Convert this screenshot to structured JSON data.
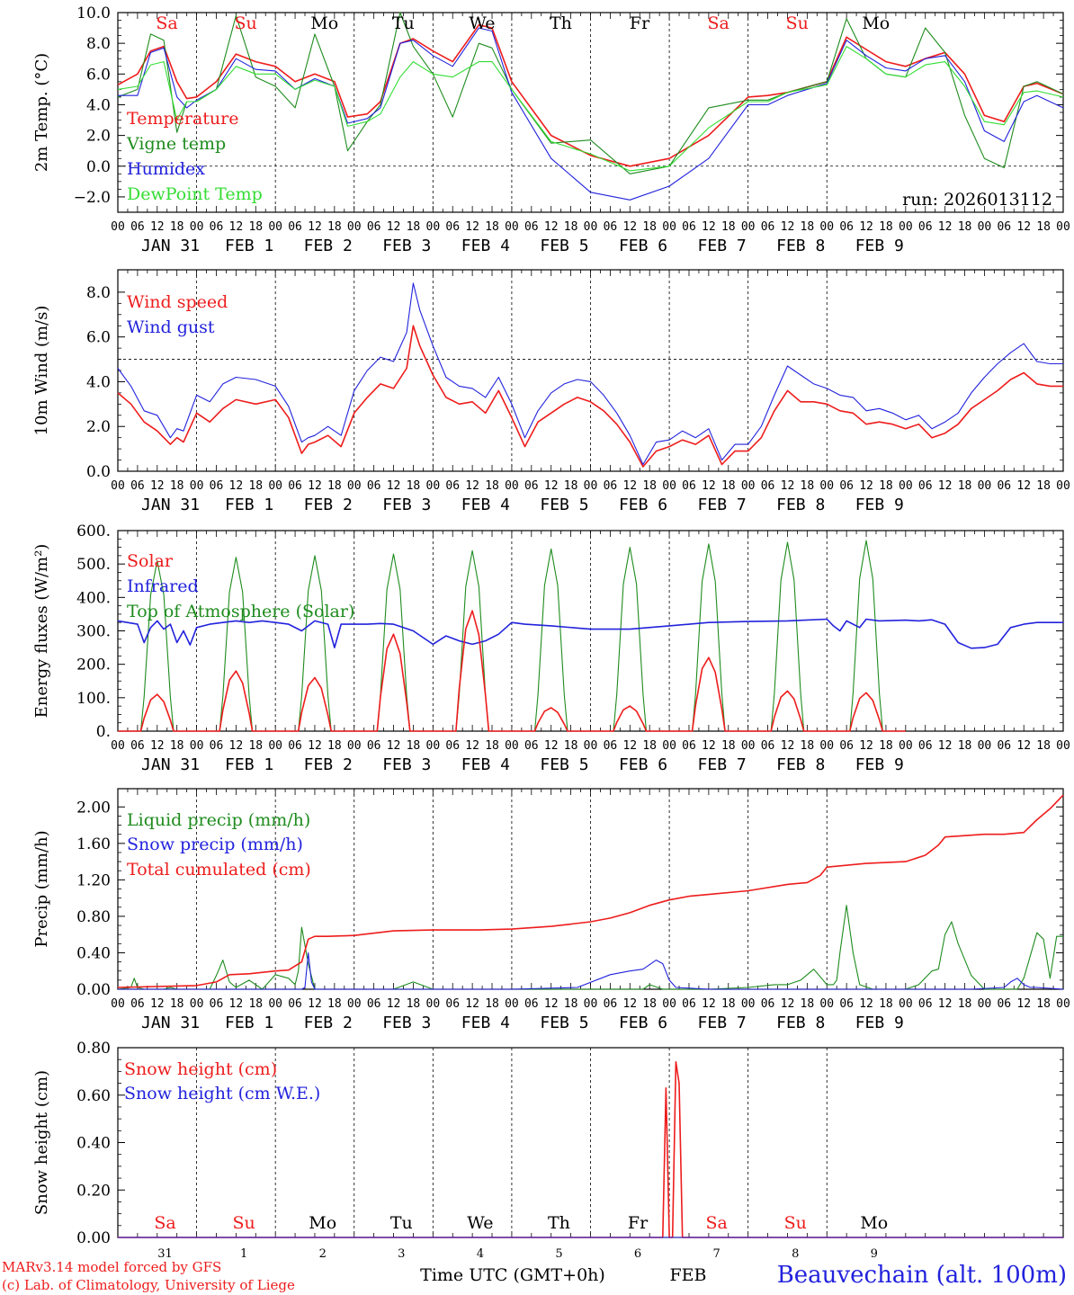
{
  "colors": {
    "red": "#ee1c1c",
    "green": "#1e8c1e",
    "blue": "#2222dd",
    "lightgreen": "#33dd33",
    "axis": "#000000"
  },
  "day_labels": [
    {
      "text": "Sa",
      "color": "red"
    },
    {
      "text": "Su",
      "color": "red"
    },
    {
      "text": "Mo",
      "color": "axis"
    },
    {
      "text": "Tu",
      "color": "axis"
    },
    {
      "text": "We",
      "color": "axis"
    },
    {
      "text": "Th",
      "color": "axis"
    },
    {
      "text": "Fr",
      "color": "axis"
    },
    {
      "text": "Sa",
      "color": "red"
    },
    {
      "text": "Su",
      "color": "red"
    },
    {
      "text": "Mo",
      "color": "axis"
    }
  ],
  "hour_ticks": [
    "00",
    "06",
    "12",
    "18"
  ],
  "date_labels": [
    "JAN 31",
    "FEB  1",
    "FEB  2",
    "FEB  3",
    "FEB  4",
    "FEB  5",
    "FEB  6",
    "FEB  7",
    "FEB  8",
    "FEB  9"
  ],
  "footer": {
    "day_numbers": [
      "31",
      "1",
      "2",
      "3",
      "4",
      "5",
      "6",
      "7",
      "8",
      "9"
    ],
    "time_label": "Time UTC (GMT+0h)",
    "month_label": "FEB",
    "station": "Beauvechain (alt. 100m)",
    "credit_1": "MARv3.14 model forced by GFS",
    "credit_2": "(c) Lab. of Climatology, University of Liege"
  },
  "chart_data": [
    {
      "id": "temperature",
      "type": "line",
      "ylabel": "2m Temp. (°C)",
      "ylim": [
        -3.0,
        10.0
      ],
      "yticks": [
        -2.0,
        0.0,
        2.0,
        4.0,
        6.0,
        8.0,
        10.0
      ],
      "ytick_labels": [
        "-2.0",
        "0.0",
        "2.0",
        "4.0",
        "6.0",
        "8.0",
        "10.0"
      ],
      "hline": 0.0,
      "run_label": "run: 2026013112",
      "x_hours": [
        0,
        6,
        10,
        14,
        18,
        21,
        24,
        30,
        36,
        42,
        48,
        54,
        60,
        66,
        70,
        76,
        80,
        86,
        90,
        96,
        102,
        110,
        114,
        120,
        132,
        144,
        156,
        168,
        180,
        192,
        198,
        204,
        216,
        222,
        228,
        234,
        240,
        246,
        252,
        258,
        264,
        270,
        276,
        280,
        288
      ],
      "series": [
        {
          "name": "Temperature",
          "color": "red",
          "values": [
            5.3,
            6.0,
            7.5,
            7.8,
            5.5,
            4.4,
            4.5,
            5.5,
            7.3,
            6.8,
            6.5,
            5.5,
            6.0,
            5.5,
            3.2,
            3.4,
            4.2,
            8.0,
            8.3,
            7.5,
            6.8,
            9.2,
            9.0,
            5.5,
            2.0,
            0.7,
            0.0,
            0.5,
            2.0,
            4.5,
            4.6,
            4.8,
            5.5,
            8.4,
            7.6,
            6.8,
            6.5,
            7.0,
            7.4,
            6.0,
            3.3,
            2.9,
            5.2,
            5.4,
            4.7
          ]
        },
        {
          "name": "Vigne temp",
          "color": "green",
          "values": [
            4.5,
            5.0,
            8.6,
            8.2,
            2.2,
            4.2,
            4.2,
            5.0,
            9.8,
            5.8,
            5.2,
            3.8,
            8.6,
            5.2,
            1.0,
            2.9,
            4.0,
            10.0,
            7.8,
            6.0,
            3.2,
            8.0,
            7.7,
            5.0,
            1.5,
            1.7,
            -0.5,
            0.0,
            3.8,
            4.3,
            4.3,
            4.8,
            5.5,
            9.6,
            7.0,
            6.0,
            5.8,
            9.0,
            7.4,
            3.3,
            0.5,
            -0.1,
            5.2,
            5.5,
            4.7
          ]
        },
        {
          "name": "Humidex",
          "color": "blue",
          "values": [
            4.6,
            4.6,
            7.4,
            7.7,
            4.5,
            3.8,
            4.3,
            5.0,
            7.0,
            6.3,
            6.2,
            5.0,
            5.7,
            5.2,
            2.8,
            3.1,
            3.8,
            8.0,
            8.2,
            7.2,
            6.5,
            9.0,
            8.8,
            4.8,
            0.5,
            -1.7,
            -2.2,
            -1.3,
            0.5,
            4.0,
            4.0,
            4.6,
            5.4,
            8.2,
            7.2,
            6.4,
            6.2,
            7.0,
            7.2,
            5.5,
            2.3,
            1.6,
            4.2,
            4.6,
            3.8
          ]
        },
        {
          "name": "DewPoint Temp",
          "color": "lightgreen",
          "values": [
            5.0,
            5.2,
            6.6,
            6.8,
            3.0,
            4.2,
            4.2,
            5.0,
            6.5,
            6.0,
            6.0,
            5.0,
            5.6,
            5.2,
            2.6,
            2.9,
            3.4,
            5.8,
            6.8,
            6.0,
            5.8,
            6.8,
            6.8,
            5.0,
            1.6,
            0.8,
            -0.3,
            0.0,
            2.5,
            4.2,
            4.2,
            4.8,
            5.3,
            7.8,
            7.0,
            6.0,
            5.8,
            6.6,
            6.8,
            5.2,
            2.9,
            2.7,
            4.8,
            4.9,
            4.5
          ]
        }
      ]
    },
    {
      "id": "wind",
      "type": "line",
      "ylabel": "10m Wind (m/s)",
      "ylim": [
        0.0,
        9.0
      ],
      "yticks": [
        0.0,
        2.0,
        4.0,
        6.0,
        8.0
      ],
      "ytick_labels": [
        "0.0",
        "2.0",
        "4.0",
        "6.0",
        "8.0"
      ],
      "hline": 5.0,
      "x_hours": [
        0,
        4,
        8,
        12,
        16,
        18,
        20,
        24,
        28,
        32,
        36,
        42,
        48,
        52,
        56,
        58,
        60,
        64,
        68,
        72,
        76,
        80,
        84,
        88,
        90,
        92,
        96,
        100,
        104,
        108,
        112,
        116,
        120,
        124,
        128,
        132,
        136,
        140,
        144,
        148,
        152,
        156,
        160,
        164,
        168,
        172,
        176,
        180,
        184,
        188,
        192,
        196,
        200,
        204,
        208,
        212,
        216,
        220,
        224,
        228,
        232,
        236,
        240,
        244,
        248,
        252,
        256,
        260,
        264,
        268,
        272,
        276,
        280,
        284,
        288
      ],
      "series": [
        {
          "name": "Wind speed",
          "color": "red",
          "values": [
            3.5,
            3.0,
            2.2,
            1.8,
            1.2,
            1.5,
            1.3,
            2.6,
            2.2,
            2.8,
            3.2,
            3.0,
            3.2,
            2.4,
            0.8,
            1.2,
            1.3,
            1.6,
            1.1,
            2.6,
            3.3,
            3.9,
            3.7,
            4.6,
            6.5,
            5.6,
            4.3,
            3.3,
            3.0,
            3.1,
            2.6,
            3.6,
            2.4,
            1.1,
            2.2,
            2.6,
            3.0,
            3.3,
            3.1,
            2.7,
            2.1,
            1.3,
            0.2,
            0.9,
            1.1,
            1.4,
            1.2,
            1.6,
            0.3,
            0.9,
            0.9,
            1.5,
            2.7,
            3.6,
            3.1,
            3.1,
            3.0,
            2.7,
            2.6,
            2.1,
            2.2,
            2.1,
            1.9,
            2.1,
            1.5,
            1.7,
            2.1,
            2.8,
            3.2,
            3.6,
            4.1,
            4.4,
            3.9,
            3.8,
            3.8
          ]
        },
        {
          "name": "Wind gust",
          "color": "blue",
          "values": [
            4.6,
            3.8,
            2.7,
            2.5,
            1.5,
            1.9,
            1.8,
            3.4,
            3.1,
            3.9,
            4.2,
            4.1,
            3.8,
            2.9,
            1.3,
            1.5,
            1.6,
            2.0,
            1.6,
            3.6,
            4.5,
            5.1,
            4.9,
            6.2,
            8.4,
            7.2,
            5.6,
            4.2,
            3.8,
            3.7,
            3.3,
            4.2,
            3.0,
            1.5,
            2.7,
            3.5,
            3.9,
            4.1,
            4.0,
            3.4,
            2.6,
            1.6,
            0.3,
            1.3,
            1.4,
            1.8,
            1.5,
            1.9,
            0.5,
            1.2,
            1.2,
            2.0,
            3.4,
            4.7,
            4.3,
            3.9,
            3.7,
            3.4,
            3.3,
            2.7,
            2.8,
            2.6,
            2.3,
            2.5,
            1.9,
            2.2,
            2.6,
            3.5,
            4.2,
            4.8,
            5.3,
            5.7,
            4.9,
            4.8,
            4.8
          ]
        }
      ]
    },
    {
      "id": "energy",
      "type": "line",
      "ylabel": "Energy fluxes (W/m²)",
      "ylim": [
        0,
        600
      ],
      "yticks": [
        0,
        100,
        200,
        300,
        400,
        500,
        600
      ],
      "ytick_labels": [
        "0.",
        "100.",
        "200.",
        "300.",
        "400.",
        "500.",
        "600."
      ],
      "solar_day_peaks": [
        110,
        180,
        160,
        290,
        360,
        70,
        75,
        220,
        120,
        115
      ],
      "toa_day_peaks": [
        510,
        520,
        525,
        530,
        540,
        545,
        550,
        560,
        565,
        570
      ],
      "infrared_x_hours": [
        0,
        6,
        8,
        10,
        12,
        14,
        16,
        18,
        20,
        22,
        24,
        28,
        32,
        36,
        40,
        44,
        48,
        52,
        56,
        60,
        64,
        66,
        68,
        72,
        76,
        80,
        84,
        90,
        96,
        100,
        104,
        108,
        112,
        116,
        120,
        124,
        132,
        144,
        156,
        168,
        180,
        192,
        204,
        216,
        218,
        220,
        222,
        226,
        228,
        232,
        240,
        244,
        248,
        252,
        256,
        260,
        264,
        268,
        272,
        276,
        280,
        288
      ],
      "series": [
        {
          "name": "Solar",
          "color": "red",
          "values": []
        },
        {
          "name": "Infrared",
          "color": "blue",
          "values": [
            330,
            320,
            265,
            310,
            330,
            305,
            320,
            265,
            300,
            258,
            310,
            320,
            325,
            330,
            325,
            330,
            325,
            320,
            300,
            330,
            320,
            250,
            320,
            320,
            320,
            322,
            320,
            300,
            260,
            285,
            270,
            260,
            270,
            290,
            325,
            320,
            315,
            305,
            305,
            315,
            325,
            328,
            330,
            335,
            315,
            300,
            330,
            310,
            335,
            330,
            332,
            330,
            333,
            320,
            265,
            248,
            250,
            260,
            310,
            320,
            325,
            325
          ]
        },
        {
          "name": "Top of Atmosphere (Solar)",
          "color": "green",
          "values": []
        }
      ]
    },
    {
      "id": "precip",
      "type": "line",
      "ylabel": "Precip (mm/h)",
      "ylim": [
        0.0,
        2.2
      ],
      "yticks": [
        0.0,
        0.4,
        0.8,
        1.2,
        1.6,
        2.0
      ],
      "ytick_labels": [
        "0.00",
        "0.40",
        "0.80",
        "1.20",
        "1.60",
        "2.00"
      ],
      "series": [
        {
          "name": "Liquid precip (mm/h)",
          "color": "green",
          "x": [
            0,
            4,
            5,
            6,
            8,
            10,
            14,
            16,
            18,
            20,
            24,
            28,
            30,
            32,
            34,
            36,
            40,
            44,
            48,
            52,
            54,
            55,
            56,
            58,
            60,
            62,
            64,
            68,
            72,
            80,
            84,
            90,
            96,
            120,
            144,
            160,
            162,
            166,
            170,
            180,
            192,
            200,
            204,
            208,
            212,
            216,
            218,
            219,
            220,
            222,
            224,
            226,
            230,
            240,
            244,
            248,
            250,
            252,
            254,
            256,
            260,
            264,
            270,
            272,
            274,
            276,
            280,
            282,
            284,
            286,
            288
          ],
          "values": [
            0,
            0.02,
            0.12,
            0.02,
            0,
            0,
            0,
            0.02,
            0,
            0,
            0,
            0,
            0.15,
            0.32,
            0.08,
            0.02,
            0.1,
            0,
            0.16,
            0.12,
            0.05,
            0.2,
            0.68,
            0.28,
            0,
            0,
            0,
            0,
            0,
            0,
            0,
            0.08,
            0,
            0,
            0,
            0,
            0.05,
            0,
            0,
            0,
            0.02,
            0.05,
            0.05,
            0.1,
            0.22,
            0.05,
            0.05,
            0.1,
            0.4,
            0.92,
            0.4,
            0.05,
            0,
            0,
            0.05,
            0.2,
            0.22,
            0.6,
            0.74,
            0.5,
            0.15,
            0,
            0,
            0,
            0,
            0.12,
            0.62,
            0.55,
            0.12,
            0.58,
            0.58
          ]
        },
        {
          "name": "Snow precip (mm/h)",
          "color": "blue",
          "x": [
            0,
            56,
            57,
            58,
            59,
            60,
            62,
            70,
            120,
            140,
            150,
            156,
            160,
            164,
            166,
            168,
            170,
            180,
            200,
            240,
            260,
            270,
            272,
            274,
            276,
            278,
            280,
            288
          ],
          "values": [
            0,
            0,
            0.02,
            0.4,
            0.08,
            0,
            0,
            0,
            0,
            0.02,
            0.16,
            0.2,
            0.22,
            0.32,
            0.28,
            0.1,
            0.02,
            0,
            0,
            0,
            0,
            0.02,
            0.08,
            0.12,
            0.05,
            0.02,
            0.02,
            0
          ]
        },
        {
          "name": "Total cumulated (cm)",
          "color": "red",
          "x": [
            0,
            24,
            30,
            34,
            40,
            48,
            52,
            56,
            58,
            60,
            64,
            72,
            84,
            96,
            110,
            120,
            132,
            144,
            150,
            156,
            162,
            168,
            174,
            180,
            192,
            204,
            210,
            214,
            216,
            228,
            240,
            246,
            250,
            252,
            264,
            270,
            276,
            280,
            284,
            288
          ],
          "values": [
            0.02,
            0.04,
            0.08,
            0.16,
            0.17,
            0.2,
            0.21,
            0.3,
            0.55,
            0.58,
            0.58,
            0.59,
            0.64,
            0.65,
            0.65,
            0.66,
            0.69,
            0.74,
            0.78,
            0.84,
            0.92,
            0.98,
            1.02,
            1.04,
            1.08,
            1.15,
            1.17,
            1.25,
            1.34,
            1.38,
            1.4,
            1.47,
            1.58,
            1.67,
            1.7,
            1.7,
            1.72,
            1.86,
            1.98,
            2.13
          ]
        }
      ]
    },
    {
      "id": "snow",
      "type": "line",
      "ylabel": "Snow height (cm)",
      "ylim": [
        0.0,
        0.8
      ],
      "yticks": [
        0.0,
        0.2,
        0.4,
        0.6,
        0.8
      ],
      "ytick_labels": [
        "0.00",
        "0.20",
        "0.40",
        "0.60",
        "0.80"
      ],
      "series": [
        {
          "name": "Snow height (cm)",
          "color": "red",
          "x": [
            0,
            165,
            166,
            167,
            168,
            169,
            170,
            171,
            172,
            288
          ],
          "values": [
            0,
            0,
            0,
            0.63,
            0,
            0,
            0.74,
            0.65,
            0,
            0
          ]
        },
        {
          "name": "Snow height (cm W.E.)",
          "color": "blue",
          "x": [
            0,
            288
          ],
          "values": [
            0,
            0
          ]
        }
      ]
    }
  ]
}
